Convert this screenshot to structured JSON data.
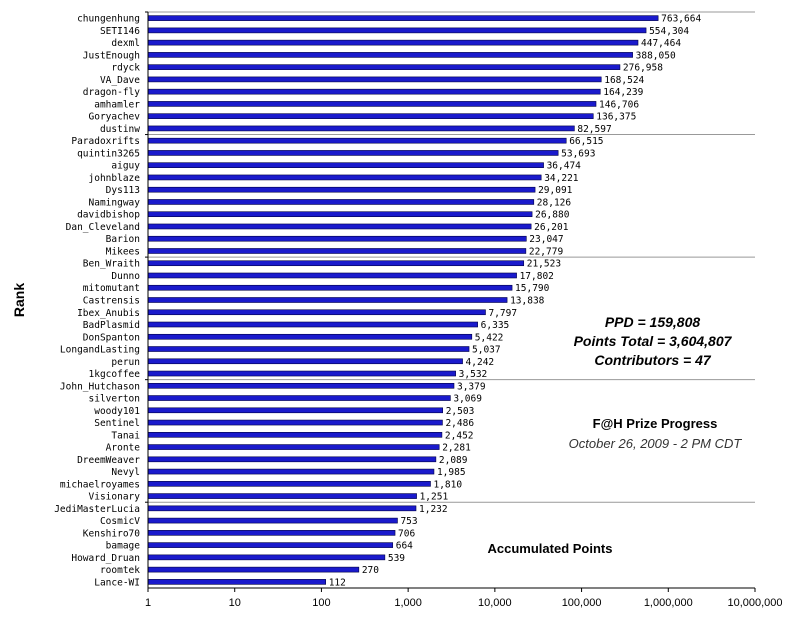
{
  "chart_data": {
    "type": "bar",
    "orientation": "horizontal",
    "scale": "log",
    "xlim": [
      1,
      10000000
    ],
    "x_ticks": [
      "1",
      "10",
      "100",
      "1,000",
      "10,000",
      "100,000",
      "1,000,000",
      "10,000,000"
    ],
    "ylabel": "Rank",
    "xlabel": "Accumulated Points",
    "bar_color": "#1a1acc",
    "grid": "horizontal every 10 bars",
    "categories": [
      "chungenhung",
      "SETI146",
      "dexml",
      "JustEnough",
      "rdyck",
      "VA_Dave",
      "dragon-fly",
      "amhamler",
      "Goryachev",
      "dustinw",
      "Paradoxrifts",
      "quintin3265",
      "aiguy",
      "johnblaze",
      "Dys113",
      "Namingway",
      "davidbishop",
      "Dan_Cleveland",
      "Barion",
      "Mikees",
      "Ben_Wraith",
      "Dunno",
      "mitomutant",
      "Castrensis",
      "Ibex_Anubis",
      "BadPlasmid",
      "DonSpanton",
      "LongandLasting",
      "perun",
      "1kgcoffee",
      "John_Hutchason",
      "silverton",
      "woody101",
      "Sentinel",
      "Tanai",
      "Aronte",
      "DreemWeaver",
      "Nevyl",
      "michaelroyames",
      "Visionary",
      "JediMasterLucia",
      "CosmicV",
      "Kenshiro70",
      "bamage",
      "Howard_Druan",
      "roomtek",
      "Lance-WI"
    ],
    "values": [
      763664,
      554304,
      447464,
      388050,
      276958,
      168524,
      164239,
      146706,
      136375,
      82597,
      66515,
      53693,
      36474,
      34221,
      29091,
      28126,
      26880,
      26201,
      23047,
      22779,
      21523,
      17802,
      15790,
      13838,
      7797,
      6335,
      5422,
      5037,
      4242,
      3532,
      3379,
      3069,
      2503,
      2486,
      2452,
      2281,
      2089,
      1985,
      1810,
      1251,
      1232,
      753,
      706,
      664,
      539,
      270,
      112
    ],
    "value_labels": [
      "763,664",
      "554,304",
      "447,464",
      "388,050",
      "276,958",
      "168,524",
      "164,239",
      "146,706",
      "136,375",
      "82,597",
      "66,515",
      "53,693",
      "36,474",
      "34,221",
      "29,091",
      "28,126",
      "26,880",
      "26,201",
      "23,047",
      "22,779",
      "21,523",
      "17,802",
      "15,790",
      "13,838",
      "7,797",
      "6,335",
      "5,422",
      "5,037",
      "4,242",
      "3,532",
      "3,379",
      "3,069",
      "2,503",
      "2,486",
      "2,452",
      "2,281",
      "2,089",
      "1,985",
      "1,810",
      "1,251",
      "1,232",
      "753",
      "706",
      "664",
      "539",
      "270",
      "112"
    ]
  },
  "stats": {
    "ppd": "PPD = 159,808",
    "points_total": "Points Total = 3,604,807",
    "contributors": "Contributors = 47"
  },
  "title": "F@H Prize Progress",
  "subtitle": "October 26, 2009 - 2 PM CDT"
}
